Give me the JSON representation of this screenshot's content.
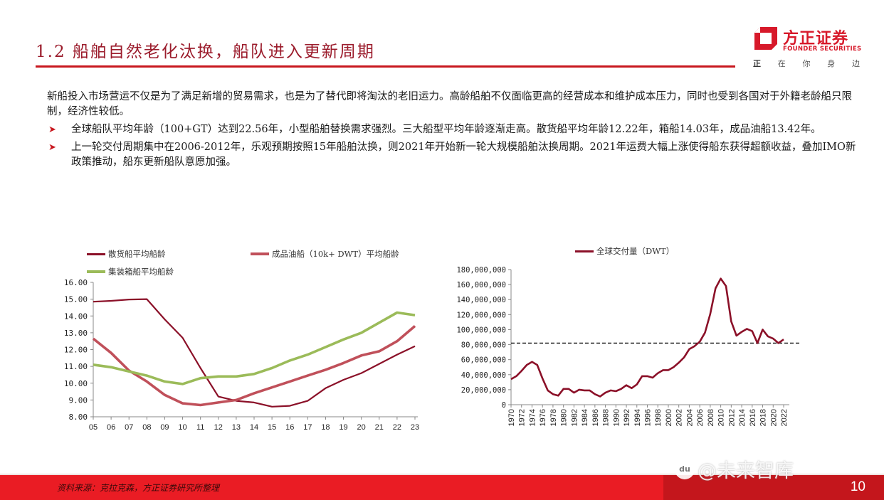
{
  "header": {
    "title": "1.2 船舶自然老化汰换，船队进入更新周期",
    "logo": {
      "cn": "方正证券",
      "en": "FOUNDER SECURITIES",
      "slogan": [
        "正",
        "在",
        "你",
        "身",
        "边"
      ]
    }
  },
  "body": {
    "intro": "新船投入市场营运不仅是为了满足新增的贸易需求，也是为了替代即将淘汰的老旧运力。高龄船舶不仅面临更高的经营成本和维护成本压力，同时也受到各国对于外籍老龄船只限制，经济性较低。",
    "bullet_icon": "arrow-bullet-icon",
    "bullets": [
      "全球船队平均年龄（100+GT）达到22.56年，小型船舶替换需求强烈。三大船型平均年龄逐渐走高。散货船平均年龄12.22年，箱船14.03年，成品油船13.42年。",
      "上一轮交付周期集中在2006-2012年，乐观预期按照15年船舶汰换，则2021年开始新一轮大规模船舶汰换周期。2021年运费大幅上涨使得船东获得超额收益，叠加IMO新政策推动，船东更新船队意愿加强。"
    ]
  },
  "footer": {
    "source": "资料来源：克拉克森，方正证券研究所整理",
    "page_number": "10",
    "watermark": "@未来智库",
    "watermark_icon": "baidu-paw-icon",
    "colors": {
      "left": "#ea1c24",
      "right": "#c4161c"
    }
  },
  "colors": {
    "accent": "#c8171e",
    "title": "#9b1c2c",
    "bulk": "#8b1028",
    "tanker": "#c0505a",
    "container": "#9bbb59",
    "delivery": "#8b1028"
  },
  "chart_data": [
    {
      "type": "line",
      "title": "",
      "xlabel": "",
      "ylabel": "",
      "ylim": [
        8,
        16
      ],
      "yticks": [
        "8.00",
        "9.00",
        "10.00",
        "11.00",
        "12.00",
        "13.00",
        "14.00",
        "15.00",
        "16.00"
      ],
      "categories": [
        "05",
        "06",
        "07",
        "08",
        "09",
        "10",
        "11",
        "12",
        "13",
        "14",
        "15",
        "16",
        "17",
        "18",
        "19",
        "20",
        "21",
        "22",
        "23"
      ],
      "x": [
        2005,
        2006,
        2007,
        2008,
        2009,
        2010,
        2011,
        2012,
        2013,
        2014,
        2015,
        2016,
        2017,
        2018,
        2019,
        2020,
        2021,
        2022,
        2023
      ],
      "legend_position": "top",
      "grid": false,
      "series": [
        {
          "name": "散货船平均船龄",
          "color": "#8b1028",
          "values": [
            14.85,
            14.9,
            14.98,
            15.0,
            13.8,
            12.7,
            10.9,
            9.2,
            8.95,
            8.85,
            8.6,
            8.65,
            8.95,
            9.7,
            10.2,
            10.6,
            11.15,
            11.7,
            12.2
          ]
        },
        {
          "name": "成品油船（10k+ DWT）平均船龄",
          "color": "#c0505a",
          "values": [
            12.65,
            11.8,
            10.75,
            10.1,
            9.3,
            8.8,
            8.7,
            8.85,
            9.0,
            9.4,
            9.75,
            10.1,
            10.45,
            10.8,
            11.2,
            11.65,
            11.9,
            12.5,
            13.4
          ]
        },
        {
          "name": "集装箱船平均船龄",
          "color": "#9bbb59",
          "values": [
            11.1,
            10.95,
            10.7,
            10.45,
            10.1,
            9.95,
            10.3,
            10.4,
            10.4,
            10.55,
            10.9,
            11.35,
            11.7,
            12.15,
            12.6,
            13.0,
            13.6,
            14.2,
            14.05
          ]
        }
      ]
    },
    {
      "type": "line",
      "title": "",
      "xlabel": "",
      "ylabel": "",
      "ylim": [
        0,
        180000000
      ],
      "yticks": [
        "0",
        "20,000,000",
        "40,000,000",
        "60,000,000",
        "80,000,000",
        "100,000,000",
        "120,000,000",
        "140,000,000",
        "160,000,000",
        "180,000,000"
      ],
      "x_tick_labels": [
        "1970",
        "1972",
        "1974",
        "1976",
        "1978",
        "1980",
        "1982",
        "1984",
        "1986",
        "1988",
        "1990",
        "1992",
        "1994",
        "1996",
        "1998",
        "2000",
        "2002",
        "2004",
        "2006",
        "2008",
        "2010",
        "2012",
        "2014",
        "2016",
        "2018",
        "2020",
        "2022"
      ],
      "x": [
        1970,
        1971,
        1972,
        1973,
        1974,
        1975,
        1976,
        1977,
        1978,
        1979,
        1980,
        1981,
        1982,
        1983,
        1984,
        1985,
        1986,
        1987,
        1988,
        1989,
        1990,
        1991,
        1992,
        1993,
        1994,
        1995,
        1996,
        1997,
        1998,
        1999,
        2000,
        2001,
        2002,
        2003,
        2004,
        2005,
        2006,
        2007,
        2008,
        2009,
        2010,
        2011,
        2012,
        2013,
        2014,
        2015,
        2016,
        2017,
        2018,
        2019,
        2020,
        2021,
        2022
      ],
      "legend_position": "top",
      "grid": false,
      "series": [
        {
          "name": "全球交付量（DWT）",
          "color": "#8b1028",
          "values": [
            34000000,
            38000000,
            45000000,
            53000000,
            57000000,
            53000000,
            35000000,
            19000000,
            14000000,
            12000000,
            21000000,
            21000000,
            16000000,
            20000000,
            19000000,
            19000000,
            14000000,
            11000000,
            16000000,
            19000000,
            18000000,
            21000000,
            26000000,
            22000000,
            27000000,
            38000000,
            38000000,
            36000000,
            42000000,
            46000000,
            46000000,
            50000000,
            56000000,
            63000000,
            74000000,
            78000000,
            84000000,
            96000000,
            121000000,
            155000000,
            168000000,
            158000000,
            111000000,
            92000000,
            97000000,
            101000000,
            98000000,
            82000000,
            100000000,
            91000000,
            88000000,
            82000000,
            87000000
          ]
        }
      ],
      "annotations": [
        {
          "type": "horizontal-dashed-line",
          "value": 82000000
        }
      ]
    }
  ]
}
